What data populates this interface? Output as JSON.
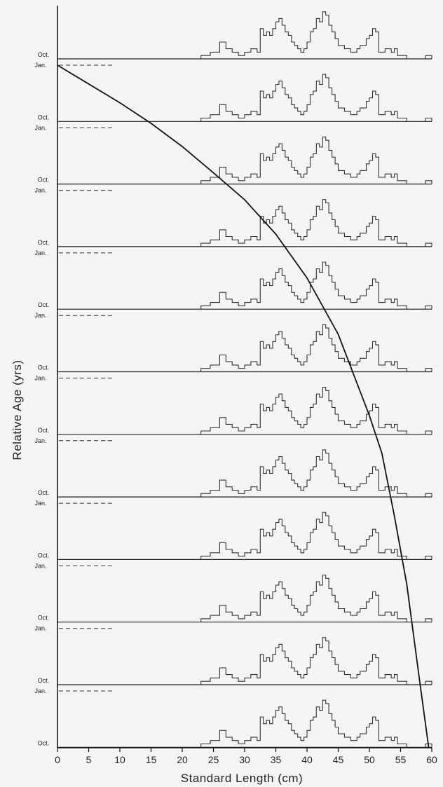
{
  "chart_data": {
    "type": "line",
    "xlabel": "Standard Length (cm)",
    "ylabel": "Relative Age (yrs)",
    "xlim": [
      0,
      60
    ],
    "x_ticks": [
      0,
      5,
      10,
      15,
      20,
      25,
      30,
      35,
      40,
      45,
      50,
      55,
      60
    ],
    "row_labels": {
      "top": "Oct.",
      "bottom": "Jan."
    },
    "rows": 12,
    "growth_curve": {
      "name": "",
      "x": [
        0,
        5,
        10,
        15,
        20,
        25,
        30,
        35,
        40,
        45,
        50,
        52,
        54,
        56,
        58,
        59.5
      ],
      "age_rows": [
        0,
        0.3,
        0.6,
        0.93,
        1.3,
        1.72,
        2.15,
        2.7,
        3.4,
        4.3,
        5.6,
        6.2,
        7.2,
        8.3,
        9.8,
        11.5
      ]
    },
    "length_frequency": {
      "bins": [
        23,
        23.5,
        24,
        24.5,
        25,
        25.5,
        26,
        26.5,
        27,
        27.5,
        28,
        28.5,
        29,
        29.5,
        30,
        30.5,
        31,
        31.5,
        32,
        32.5,
        33,
        33.5,
        34,
        34.5,
        35,
        35.5,
        36,
        36.5,
        37,
        37.5,
        38,
        38.5,
        39,
        39.5,
        40,
        40.5,
        41,
        41.5,
        42,
        42.5,
        43,
        43.5,
        44,
        44.5,
        45,
        45.5,
        46,
        46.5,
        47,
        47.5,
        48,
        48.5,
        49,
        49.5,
        50,
        50.5,
        51,
        51.5,
        52,
        52.5,
        53,
        53.5,
        54,
        54.5,
        55,
        55.5,
        59,
        59.5
      ],
      "counts": [
        1,
        1,
        1,
        2,
        2,
        2,
        5,
        5,
        3,
        3,
        2,
        2,
        1,
        1,
        2,
        2,
        3,
        3,
        2,
        9,
        7,
        8,
        7,
        9,
        11,
        12,
        10,
        8,
        7,
        5,
        4,
        3,
        2,
        3,
        5,
        8,
        9,
        12,
        11,
        14,
        13,
        10,
        8,
        6,
        4,
        4,
        3,
        3,
        2,
        2,
        3,
        4,
        4,
        6,
        7,
        9,
        8,
        2,
        2,
        3,
        3,
        2,
        3,
        1,
        1,
        1,
        1,
        1
      ]
    }
  }
}
